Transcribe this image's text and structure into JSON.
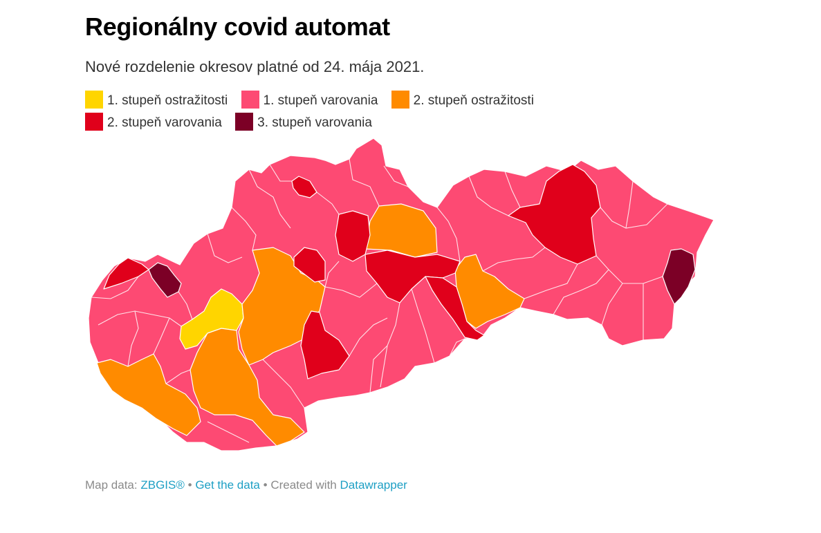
{
  "title": "Regionálny covid automat",
  "subtitle": "Nové rozdelenie okresov platné od 24. mája 2021.",
  "legend": [
    {
      "key": "l1o",
      "label": "1. stupeň ostražitosti",
      "color": "#ffd500"
    },
    {
      "key": "l1v",
      "label": "1. stupeň varovania",
      "color": "#fd4a73"
    },
    {
      "key": "l2o",
      "label": "2. stupeň ostražitosti",
      "color": "#ff8b00"
    },
    {
      "key": "l2v",
      "label": "2. stupeň varovania",
      "color": "#e0001b"
    },
    {
      "key": "l3v",
      "label": "3. stupeň varovania",
      "color": "#7c0026"
    }
  ],
  "footer": {
    "map_data_prefix": "Map data:",
    "map_data_link": "ZBGIS®",
    "separator": "•",
    "get_data_link": "Get the data",
    "created_with_prefix": "Created with",
    "created_with_link": "Datawrapper"
  }
}
